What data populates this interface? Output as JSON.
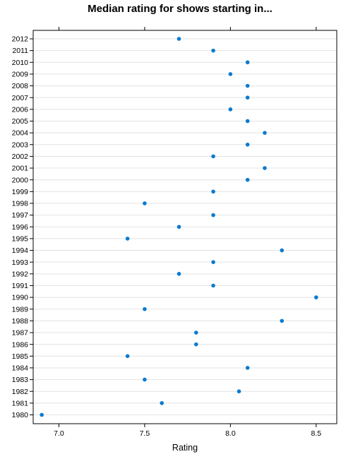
{
  "chart_data": {
    "type": "scatter",
    "title": "Median rating for shows starting in...",
    "xlabel": "Rating",
    "ylabel": "",
    "xlim": [
      6.85,
      8.62
    ],
    "x_ticks": [
      "7.0",
      "7.5",
      "8.0",
      "8.5"
    ],
    "grid": "horizontal",
    "point_color": "#0b7bd0",
    "categories": [
      "1980",
      "1981",
      "1982",
      "1983",
      "1984",
      "1985",
      "1986",
      "1987",
      "1988",
      "1989",
      "1990",
      "1991",
      "1992",
      "1993",
      "1994",
      "1995",
      "1996",
      "1997",
      "1998",
      "1999",
      "2000",
      "2001",
      "2002",
      "2003",
      "2004",
      "2005",
      "2006",
      "2007",
      "2008",
      "2009",
      "2010",
      "2011",
      "2012"
    ],
    "values": [
      6.9,
      7.6,
      8.05,
      7.5,
      8.1,
      7.4,
      7.8,
      7.8,
      8.3,
      7.5,
      8.5,
      7.9,
      7.7,
      7.9,
      8.3,
      7.4,
      7.7,
      7.9,
      7.5,
      7.9,
      8.1,
      8.2,
      7.9,
      8.1,
      8.2,
      8.1,
      8.0,
      8.1,
      8.1,
      8.0,
      8.1,
      7.9,
      7.7
    ]
  }
}
